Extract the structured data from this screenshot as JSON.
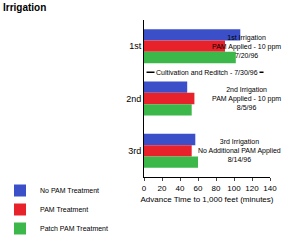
{
  "chart_data": {
    "type": "bar",
    "orientation": "horizontal",
    "title": "Irrigation",
    "x_label": "Advance Time to 1,000 feet (minutes)",
    "categories": [
      "1st",
      "2nd",
      "3rd"
    ],
    "series": [
      {
        "name": "No PAM Treatment",
        "color": "#3a4fc8",
        "values": [
          107,
          48,
          57
        ]
      },
      {
        "name": "PAM Treatment",
        "color": "#e8222a",
        "values": [
          90,
          56,
          53
        ]
      },
      {
        "name": "Patch PAM Treatment",
        "color": "#3cb84a",
        "values": [
          102,
          53,
          60
        ]
      }
    ],
    "xlim": [
      0,
      140
    ],
    "xticks": [
      0,
      20,
      40,
      60,
      80,
      100,
      120,
      140
    ],
    "grid": false,
    "legend": "bottom",
    "annotations": [
      {
        "category": "1st",
        "lines": [
          "1st Irrigation",
          "PAM Applied - 10 ppm",
          "7/20/96"
        ]
      },
      {
        "between": [
          "1st",
          "2nd"
        ],
        "lines": [
          "Cultivation and Reditch - 7/30/96"
        ]
      },
      {
        "category": "2nd",
        "lines": [
          "2nd Irrigation",
          "PAM Applied - 10 ppm",
          "8/5/96"
        ]
      },
      {
        "category": "3rd",
        "lines": [
          "3rd Irrigation",
          "No Additional PAM Applied",
          "8/14/96"
        ]
      }
    ]
  }
}
